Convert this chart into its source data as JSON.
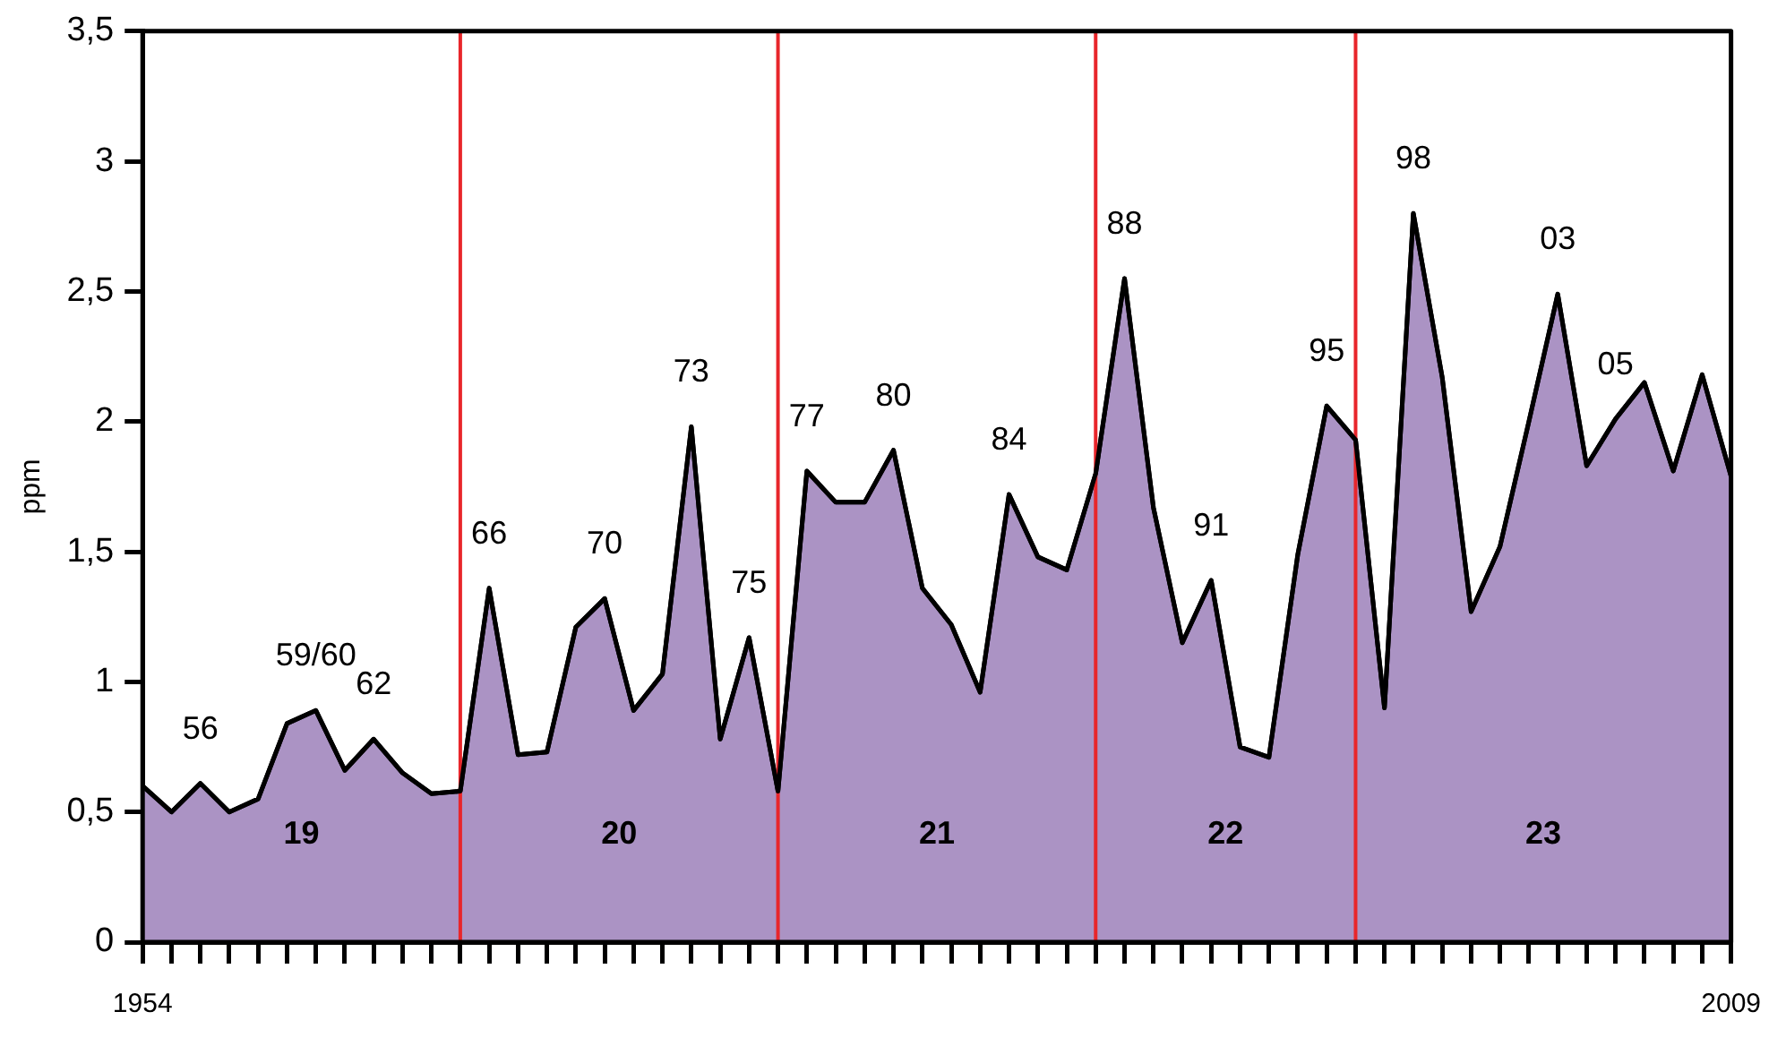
{
  "chart_data": {
    "type": "area",
    "ylabel": "ppm",
    "x": [
      1954,
      1955,
      1956,
      1957,
      1958,
      1959,
      1960,
      1961,
      1962,
      1963,
      1964,
      1965,
      1966,
      1967,
      1968,
      1969,
      1970,
      1971,
      1972,
      1973,
      1974,
      1975,
      1976,
      1977,
      1978,
      1979,
      1980,
      1981,
      1982,
      1983,
      1984,
      1985,
      1986,
      1987,
      1988,
      1989,
      1990,
      1991,
      1992,
      1993,
      1994,
      1995,
      1996,
      1997,
      1998,
      1999,
      2000,
      2001,
      2002,
      2003,
      2004,
      2005,
      2006,
      2007,
      2008,
      2009
    ],
    "series": [
      {
        "color": "#ab93c4",
        "values": [
          0.6,
          0.5,
          0.61,
          0.5,
          0.55,
          0.84,
          0.89,
          0.66,
          0.78,
          0.65,
          0.57,
          0.58,
          1.36,
          0.72,
          0.73,
          1.21,
          1.32,
          0.89,
          1.03,
          1.98,
          0.78,
          1.17,
          0.58,
          1.81,
          1.69,
          1.69,
          1.89,
          1.36,
          1.22,
          0.96,
          1.72,
          1.48,
          1.43,
          1.8,
          2.55,
          1.67,
          1.15,
          1.39,
          0.75,
          0.71,
          1.49,
          2.06,
          1.93,
          0.9,
          2.8,
          2.17,
          1.27,
          1.52,
          2.0,
          2.49,
          1.83,
          2.01,
          2.15,
          1.81,
          2.18,
          1.79
        ]
      }
    ],
    "xlim": [
      1954,
      2009
    ],
    "xticks": [
      {
        "value": 1954,
        "label": "1954"
      },
      {
        "value": 1955,
        "label": null
      },
      {
        "value": 1956,
        "label": null
      },
      {
        "value": 1957,
        "label": null
      },
      {
        "value": 1958,
        "label": null
      },
      {
        "value": 1959,
        "label": null
      },
      {
        "value": 1960,
        "label": null
      },
      {
        "value": 1961,
        "label": null
      },
      {
        "value": 1962,
        "label": null
      },
      {
        "value": 1963,
        "label": null
      },
      {
        "value": 1964,
        "label": null
      },
      {
        "value": 1965,
        "label": null
      },
      {
        "value": 1966,
        "label": null
      },
      {
        "value": 1967,
        "label": null
      },
      {
        "value": 1968,
        "label": null
      },
      {
        "value": 1969,
        "label": null
      },
      {
        "value": 1970,
        "label": null
      },
      {
        "value": 1971,
        "label": null
      },
      {
        "value": 1972,
        "label": null
      },
      {
        "value": 1973,
        "label": null
      },
      {
        "value": 1974,
        "label": null
      },
      {
        "value": 1975,
        "label": null
      },
      {
        "value": 1976,
        "label": null
      },
      {
        "value": 1977,
        "label": null
      },
      {
        "value": 1978,
        "label": null
      },
      {
        "value": 1979,
        "label": null
      },
      {
        "value": 1980,
        "label": null
      },
      {
        "value": 1981,
        "label": null
      },
      {
        "value": 1982,
        "label": null
      },
      {
        "value": 1983,
        "label": null
      },
      {
        "value": 1984,
        "label": null
      },
      {
        "value": 1985,
        "label": null
      },
      {
        "value": 1986,
        "label": null
      },
      {
        "value": 1987,
        "label": null
      },
      {
        "value": 1988,
        "label": null
      },
      {
        "value": 1989,
        "label": null
      },
      {
        "value": 1990,
        "label": null
      },
      {
        "value": 1991,
        "label": null
      },
      {
        "value": 1992,
        "label": null
      },
      {
        "value": 1993,
        "label": null
      },
      {
        "value": 1994,
        "label": null
      },
      {
        "value": 1995,
        "label": null
      },
      {
        "value": 1996,
        "label": null
      },
      {
        "value": 1997,
        "label": null
      },
      {
        "value": 1998,
        "label": null
      },
      {
        "value": 1999,
        "label": null
      },
      {
        "value": 2000,
        "label": null
      },
      {
        "value": 2001,
        "label": null
      },
      {
        "value": 2002,
        "label": null
      },
      {
        "value": 2003,
        "label": null
      },
      {
        "value": 2004,
        "label": null
      },
      {
        "value": 2005,
        "label": null
      },
      {
        "value": 2006,
        "label": null
      },
      {
        "value": 2007,
        "label": null
      },
      {
        "value": 2008,
        "label": null
      },
      {
        "value": 2009,
        "label": "2009"
      }
    ],
    "ylim": [
      0,
      3.5
    ],
    "yticks": [
      0,
      {
        "value": 0.5,
        "label": "0,5"
      },
      1,
      {
        "value": 1.5,
        "label": "1,5"
      },
      2,
      {
        "value": 2.5,
        "label": "2,5"
      },
      3,
      {
        "value": 3.5,
        "label": "3,5"
      }
    ],
    "ref_lines": [
      {
        "axis": "x",
        "value": 1965,
        "color": "#e8262b"
      },
      {
        "axis": "x",
        "value": 1976,
        "color": "#e8262b"
      },
      {
        "axis": "x",
        "value": 1987,
        "color": "#e8262b"
      },
      {
        "axis": "x",
        "value": 1996,
        "color": "#e8262b"
      }
    ],
    "annotations": [
      {
        "text": "56",
        "x": 1956,
        "y": 0.61
      },
      {
        "text": "59/60",
        "x": 1960,
        "y": 0.89
      },
      {
        "text": "62",
        "x": 1962,
        "y": 0.78
      },
      {
        "text": "66",
        "x": 1966,
        "y": 1.36
      },
      {
        "text": "70",
        "x": 1970,
        "y": 1.32
      },
      {
        "text": "73",
        "x": 1973,
        "y": 1.98
      },
      {
        "text": "75",
        "x": 1975,
        "y": 1.17
      },
      {
        "text": "77",
        "x": 1977,
        "y": 1.81
      },
      {
        "text": "80",
        "x": 1980,
        "y": 1.89
      },
      {
        "text": "84",
        "x": 1984,
        "y": 1.72
      },
      {
        "text": "88",
        "x": 1988,
        "y": 2.55
      },
      {
        "text": "91",
        "x": 1991,
        "y": 1.39
      },
      {
        "text": "95",
        "x": 1995,
        "y": 2.06
      },
      {
        "text": "98",
        "x": 1998,
        "y": 2.8
      },
      {
        "text": "03",
        "x": 2003,
        "y": 2.49
      },
      {
        "text": "05",
        "x": 2005,
        "y": 2.01
      },
      "19",
      "20",
      "21",
      "22",
      "23"
    ],
    "grid": false,
    "legend": false,
    "marker": "none",
    "line_style": "solid"
  }
}
